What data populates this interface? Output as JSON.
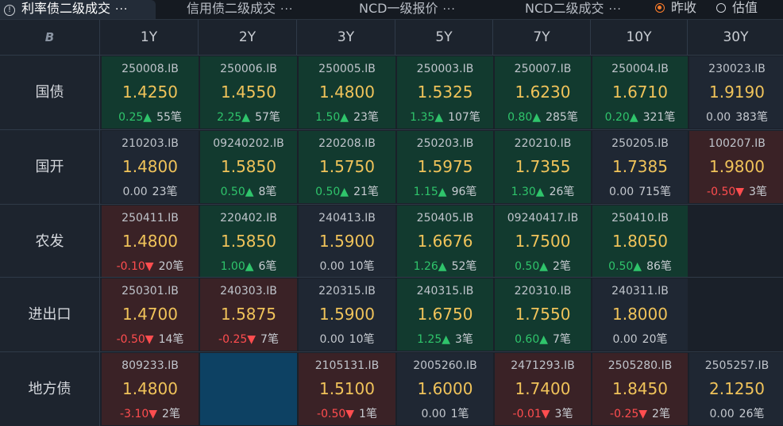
{
  "tabs": [
    {
      "label": "利率债二级成交",
      "active": true
    },
    {
      "label": "信用债二级成交",
      "active": false
    },
    {
      "label": "NCD一级报价",
      "active": false
    },
    {
      "label": "NCD二级成交",
      "active": false
    }
  ],
  "tab_more": "···",
  "radios": [
    {
      "label": "昨收",
      "checked": true
    },
    {
      "label": "估值",
      "checked": false
    }
  ],
  "corner_logo": "B",
  "columns": [
    "1Y",
    "2Y",
    "3Y",
    "5Y",
    "7Y",
    "10Y",
    "30Y"
  ],
  "rows": [
    {
      "label": "国债",
      "cells": [
        {
          "code": "250008.IB",
          "yield": "1.4250",
          "change": "0.25▲",
          "dir": "up",
          "count": "55笔"
        },
        {
          "code": "250006.IB",
          "yield": "1.4550",
          "change": "2.25▲",
          "dir": "up",
          "count": "57笔"
        },
        {
          "code": "250005.IB",
          "yield": "1.4800",
          "change": "1.50▲",
          "dir": "up",
          "count": "23笔"
        },
        {
          "code": "250003.IB",
          "yield": "1.5325",
          "change": "1.35▲",
          "dir": "up",
          "count": "107笔"
        },
        {
          "code": "250007.IB",
          "yield": "1.6230",
          "change": "0.80▲",
          "dir": "up",
          "count": "285笔"
        },
        {
          "code": "250004.IB",
          "yield": "1.6710",
          "change": "0.20▲",
          "dir": "up",
          "count": "321笔"
        },
        {
          "code": "230023.IB",
          "yield": "1.9190",
          "change": "0.00",
          "dir": "flat",
          "count": "383笔"
        }
      ]
    },
    {
      "label": "国开",
      "cells": [
        {
          "code": "210203.IB",
          "yield": "1.4800",
          "change": "0.00",
          "dir": "flat",
          "count": "23笔"
        },
        {
          "code": "09240202.IB",
          "yield": "1.5850",
          "change": "0.50▲",
          "dir": "up",
          "count": "8笔"
        },
        {
          "code": "220208.IB",
          "yield": "1.5750",
          "change": "0.50▲",
          "dir": "up",
          "count": "21笔"
        },
        {
          "code": "250203.IB",
          "yield": "1.5975",
          "change": "1.15▲",
          "dir": "up",
          "count": "96笔"
        },
        {
          "code": "220210.IB",
          "yield": "1.7355",
          "change": "1.30▲",
          "dir": "up",
          "count": "26笔"
        },
        {
          "code": "250205.IB",
          "yield": "1.7385",
          "change": "0.00",
          "dir": "flat",
          "count": "715笔"
        },
        {
          "code": "100207.IB",
          "yield": "1.9800",
          "change": "-0.50▼",
          "dir": "down",
          "count": "3笔"
        }
      ]
    },
    {
      "label": "农发",
      "cells": [
        {
          "code": "250411.IB",
          "yield": "1.4800",
          "change": "-0.10▼",
          "dir": "down",
          "count": "20笔"
        },
        {
          "code": "220402.IB",
          "yield": "1.5850",
          "change": "1.00▲",
          "dir": "up",
          "count": "6笔"
        },
        {
          "code": "240413.IB",
          "yield": "1.5900",
          "change": "0.00",
          "dir": "flat",
          "count": "10笔"
        },
        {
          "code": "250405.IB",
          "yield": "1.6676",
          "change": "1.26▲",
          "dir": "up",
          "count": "52笔"
        },
        {
          "code": "09240417.IB",
          "yield": "1.7500",
          "change": "0.50▲",
          "dir": "up",
          "count": "2笔"
        },
        {
          "code": "250410.IB",
          "yield": "1.8050",
          "change": "0.50▲",
          "dir": "up",
          "count": "86笔"
        },
        null
      ]
    },
    {
      "label": "进出口",
      "cells": [
        {
          "code": "250301.IB",
          "yield": "1.4700",
          "change": "-0.50▼",
          "dir": "down",
          "count": "14笔"
        },
        {
          "code": "240303.IB",
          "yield": "1.5875",
          "change": "-0.25▼",
          "dir": "down",
          "count": "7笔"
        },
        {
          "code": "220315.IB",
          "yield": "1.5900",
          "change": "0.00",
          "dir": "flat",
          "count": "10笔"
        },
        {
          "code": "240315.IB",
          "yield": "1.6750",
          "change": "1.25▲",
          "dir": "up",
          "count": "3笔"
        },
        {
          "code": "220310.IB",
          "yield": "1.7550",
          "change": "0.60▲",
          "dir": "up",
          "count": "7笔"
        },
        {
          "code": "240311.IB",
          "yield": "1.8000",
          "change": "0.00",
          "dir": "flat",
          "count": "20笔"
        },
        null
      ]
    },
    {
      "label": "地方债",
      "cells": [
        {
          "code": "809233.IB",
          "yield": "1.4800",
          "change": "-3.10▼",
          "dir": "down",
          "count": "2笔"
        },
        {
          "selected": true
        },
        {
          "code": "2105131.IB",
          "yield": "1.5100",
          "change": "-0.50▼",
          "dir": "down",
          "count": "1笔"
        },
        {
          "code": "2005260.IB",
          "yield": "1.6000",
          "change": "0.00",
          "dir": "flat",
          "count": "1笔"
        },
        {
          "code": "2471293.IB",
          "yield": "1.7400",
          "change": "-0.01▼",
          "dir": "down",
          "count": "3笔"
        },
        {
          "code": "2505280.IB",
          "yield": "1.8450",
          "change": "-0.25▼",
          "dir": "down",
          "count": "2笔"
        },
        {
          "code": "2505257.IB",
          "yield": "2.1250",
          "change": "0.00",
          "dir": "flat",
          "count": "26笔"
        }
      ]
    }
  ]
}
